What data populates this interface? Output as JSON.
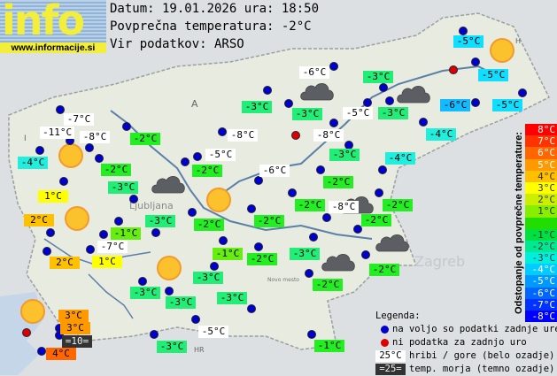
{
  "header": {
    "logo_text": "info",
    "logo_url": "www.informacije.si",
    "date_line": "Datum: 19.01.2026 ura: 18:50",
    "avg_line": "Povprečna temperatura: -2°C",
    "source_line": "Vir podatkov: ARSO"
  },
  "map_marks": {
    "country_codes": [
      "A",
      "H",
      "I",
      "HR"
    ],
    "cities": [
      "Ljubljana",
      "Zagreb",
      "Novo mesto"
    ]
  },
  "colors": {
    "white": "#ffffff",
    "dark": "#333333",
    "g1": "#66ee11",
    "g2": "#22ee22",
    "g3": "#22ee77",
    "c4": "#22eedd",
    "c5": "#11ddff",
    "c6": "#11bbff",
    "y1": "#ffff00",
    "o2": "#ffc000",
    "o3": "#ff9900",
    "o4": "#ff6600",
    "station_dot": "#0000cc",
    "missing_dot": "#dd0000"
  },
  "stations": [
    {
      "temp": "-5°C",
      "color": "c5"
    },
    {
      "temp": "-5°C",
      "color": "c5"
    },
    {
      "temp": "-6°C",
      "color": "c6"
    },
    {
      "temp": "-5°C",
      "color": "c5"
    },
    {
      "temp": "-6°C",
      "color": "white"
    },
    {
      "temp": "-3°C",
      "color": "g3"
    },
    {
      "temp": "-3°C",
      "color": "g3"
    },
    {
      "temp": "-3°C",
      "color": "g3"
    },
    {
      "temp": "-5°C",
      "color": "white"
    },
    {
      "temp": "-3°C",
      "color": "g3"
    },
    {
      "temp": "-4°C",
      "color": "c4"
    },
    {
      "temp": "-8°C",
      "color": "white"
    },
    {
      "temp": "-3°C",
      "color": "g3"
    },
    {
      "temp": "-4°C",
      "color": "c4"
    },
    {
      "temp": "-6°C",
      "color": "white"
    },
    {
      "temp": "-2°C",
      "color": "g2"
    },
    {
      "temp": "-2°C",
      "color": "g2"
    },
    {
      "temp": "-8°C",
      "color": "white"
    },
    {
      "temp": "-2°C",
      "color": "g2"
    },
    {
      "temp": "-2°C",
      "color": "g2"
    },
    {
      "temp": "-3°C",
      "color": "g3"
    },
    {
      "temp": "-2°C",
      "color": "g2"
    },
    {
      "temp": "-2°C",
      "color": "g2"
    },
    {
      "temp": "-1°C",
      "color": "g2"
    },
    {
      "temp": "-7°C",
      "color": "white"
    },
    {
      "temp": "-11°C",
      "color": "white"
    },
    {
      "temp": "-8°C",
      "color": "white"
    },
    {
      "temp": "-2°C",
      "color": "g2"
    },
    {
      "temp": "-8°C",
      "color": "white"
    },
    {
      "temp": "-4°C",
      "color": "c4"
    },
    {
      "temp": "-5°C",
      "color": "white"
    },
    {
      "temp": "-2°C",
      "color": "g2"
    },
    {
      "temp": "-2°C",
      "color": "g2"
    },
    {
      "temp": "-3°C",
      "color": "g3"
    },
    {
      "temp": "1°C",
      "color": "y1"
    },
    {
      "temp": "2°C",
      "color": "o2"
    },
    {
      "temp": "-3°C",
      "color": "g3"
    },
    {
      "temp": "-2°C",
      "color": "g2"
    },
    {
      "temp": "-2°C",
      "color": "g2"
    },
    {
      "temp": "-1°C",
      "color": "g1"
    },
    {
      "temp": "-7°C",
      "color": "white"
    },
    {
      "temp": "2°C",
      "color": "o2"
    },
    {
      "temp": "1°C",
      "color": "y1"
    },
    {
      "temp": "-1°C",
      "color": "g1"
    },
    {
      "temp": "-2°C",
      "color": "g2"
    },
    {
      "temp": "-3°C",
      "color": "g3"
    },
    {
      "temp": "-3°C",
      "color": "g3"
    },
    {
      "temp": "-3°C",
      "color": "g3"
    },
    {
      "temp": "-3°C",
      "color": "g3"
    },
    {
      "temp": "-5°C",
      "color": "white"
    },
    {
      "temp": "-3°C",
      "color": "g3"
    },
    {
      "temp": "3°C",
      "color": "o3"
    },
    {
      "temp": "3°C",
      "color": "o3"
    },
    {
      "temp": "=10=",
      "color": "dark"
    },
    {
      "temp": "4°C",
      "color": "o4"
    }
  ],
  "scale": {
    "title": "Odstopanje od povprečne temperature:",
    "steps": [
      {
        "label": "8°C",
        "color": "#ff0000"
      },
      {
        "label": "7°C",
        "color": "#ff3300"
      },
      {
        "label": "6°C",
        "color": "#ff6600"
      },
      {
        "label": "5°C",
        "color": "#ff9900"
      },
      {
        "label": "4°C",
        "color": "#ffc000"
      },
      {
        "label": "3°C",
        "color": "#ffff00"
      },
      {
        "label": "2°C",
        "color": "#ccee00"
      },
      {
        "label": "1°C",
        "color": "#88ee00"
      },
      {
        "label": "",
        "color": "#22dd00"
      },
      {
        "label": "-1°C",
        "color": "#00e040"
      },
      {
        "label": "-2°C",
        "color": "#00e890"
      },
      {
        "label": "-3°C",
        "color": "#00eedd"
      },
      {
        "label": "-4°C",
        "color": "#00ccff"
      },
      {
        "label": "-5°C",
        "color": "#0099ff"
      },
      {
        "label": "-6°C",
        "color": "#0066ff"
      },
      {
        "label": "-7°C",
        "color": "#0033ff"
      },
      {
        "label": "-8°C",
        "color": "#0000ff"
      }
    ]
  },
  "legend": {
    "title": "Legenda:",
    "available": "na voljo so podatki zadnje ure",
    "missing": "ni podatka za zadnjo uro",
    "mountain_sample": "25°C",
    "mountain_text": "hribi / gore (belo ozadje)",
    "sea_sample": "=25=",
    "sea_text": "temp. morja (temno ozadje)"
  }
}
